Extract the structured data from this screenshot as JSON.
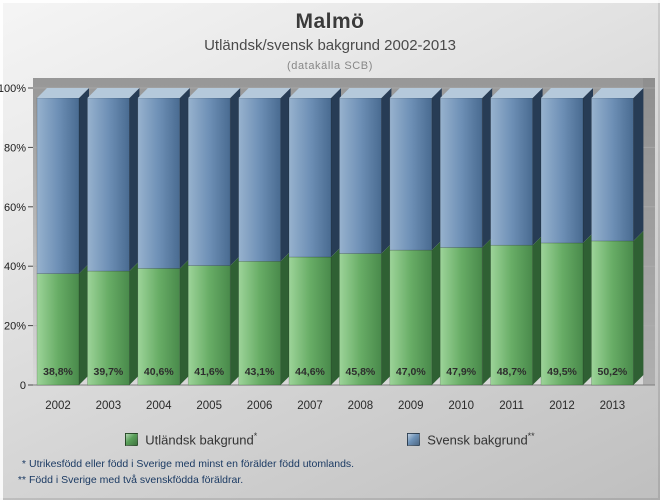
{
  "header": {
    "title": "Malmö",
    "subtitle": "Utländsk/svensk bakgrund 2002-2013",
    "source": "(datakälla SCB)"
  },
  "chart_data": {
    "type": "bar",
    "stacked": true,
    "percent": true,
    "title": "Malmö",
    "subtitle": "Utländsk/svensk bakgrund 2002-2013",
    "source": "(datakälla SCB)",
    "categories": [
      "2002",
      "2003",
      "2004",
      "2005",
      "2006",
      "2007",
      "2008",
      "2009",
      "2010",
      "2011",
      "2012",
      "2013"
    ],
    "series": [
      {
        "name": "Utländsk bakgrund",
        "legend_marker": "*",
        "color": "#58a058",
        "values": [
          38.8,
          39.7,
          40.6,
          41.6,
          43.1,
          44.6,
          45.8,
          47.0,
          47.9,
          48.7,
          49.5,
          50.2
        ],
        "labels": [
          "38,8%",
          "39,7%",
          "40,6%",
          "41,6%",
          "43,1%",
          "44,6%",
          "45,8%",
          "47,0%",
          "47,9%",
          "48,7%",
          "49,5%",
          "50,2%"
        ]
      },
      {
        "name": "Svensk bakgrund",
        "legend_marker": "**",
        "color": "#6e92b8",
        "values": [
          61.2,
          60.3,
          59.4,
          58.4,
          56.9,
          55.4,
          54.2,
          53.0,
          52.1,
          51.3,
          50.5,
          49.8
        ]
      }
    ],
    "ylim": [
      0,
      100
    ],
    "yticks": [
      {
        "value": 0,
        "label": "0"
      },
      {
        "value": 20,
        "label": "20%"
      },
      {
        "value": 40,
        "label": "40%"
      },
      {
        "value": 60,
        "label": "60%"
      },
      {
        "value": 80,
        "label": "80%"
      },
      {
        "value": 100,
        "label": "100%"
      }
    ],
    "grid": true,
    "legend_position": "bottom"
  },
  "legend": {
    "items": [
      {
        "label": "Utländsk bakgrund",
        "marker": "*",
        "color": "#58a058"
      },
      {
        "label": "Svensk bakgrund",
        "marker": "**",
        "color": "#6e92b8"
      }
    ]
  },
  "footnotes": [
    {
      "marker": "*",
      "text": "Utrikesfödd eller född i Sverige med minst en förälder född utomlands."
    },
    {
      "marker": "**",
      "text": "Född i Sverige med två svenskfödda föräldrar."
    }
  ]
}
